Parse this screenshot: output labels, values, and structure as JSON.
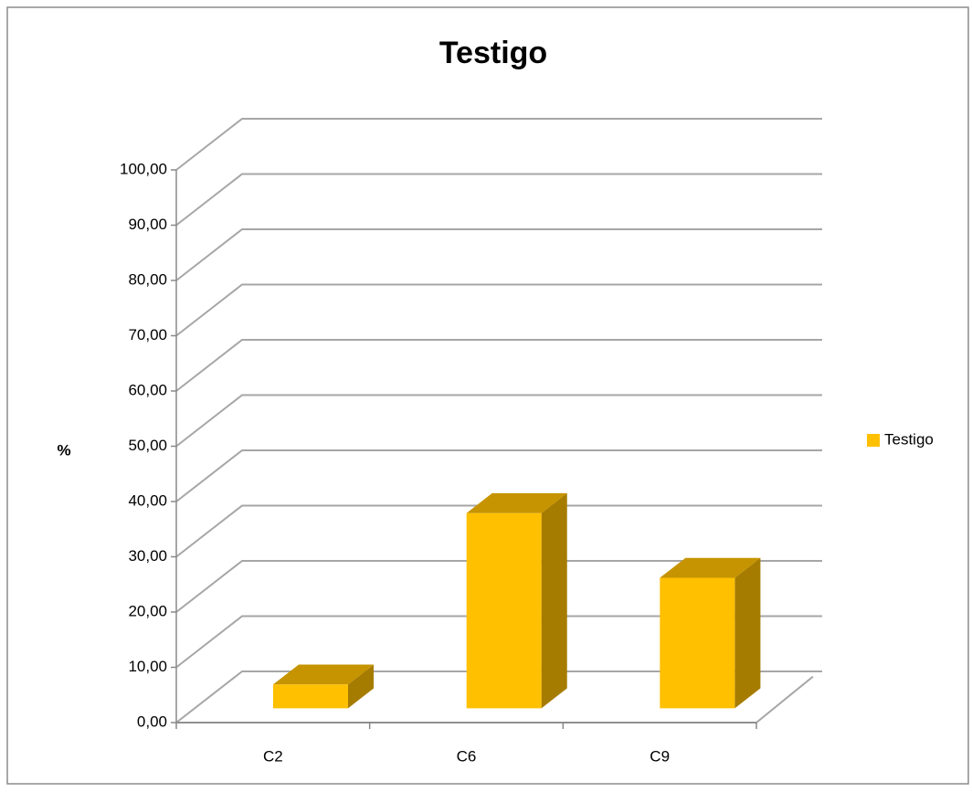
{
  "chart_data": {
    "type": "bar3d",
    "title": "Testigo",
    "ylabel": "%",
    "categories": [
      "C2",
      "C6",
      "C9"
    ],
    "series": [
      {
        "name": "Testigo",
        "color": "#ffc000",
        "values": [
          4.3,
          35.3,
          23.6
        ]
      }
    ],
    "ylim": [
      0,
      100
    ],
    "yticks": [
      {
        "value": 0,
        "label": "0,00"
      },
      {
        "value": 10,
        "label": "10,00"
      },
      {
        "value": 20,
        "label": "20,00"
      },
      {
        "value": 30,
        "label": "30,00"
      },
      {
        "value": 40,
        "label": "40,00"
      },
      {
        "value": 50,
        "label": "50,00"
      },
      {
        "value": 60,
        "label": "60,00"
      },
      {
        "value": 70,
        "label": "70,00"
      },
      {
        "value": 80,
        "label": "80,00"
      },
      {
        "value": 90,
        "label": "90,00"
      },
      {
        "value": 100,
        "label": "100,00"
      }
    ],
    "grid": true,
    "legend": "right"
  }
}
